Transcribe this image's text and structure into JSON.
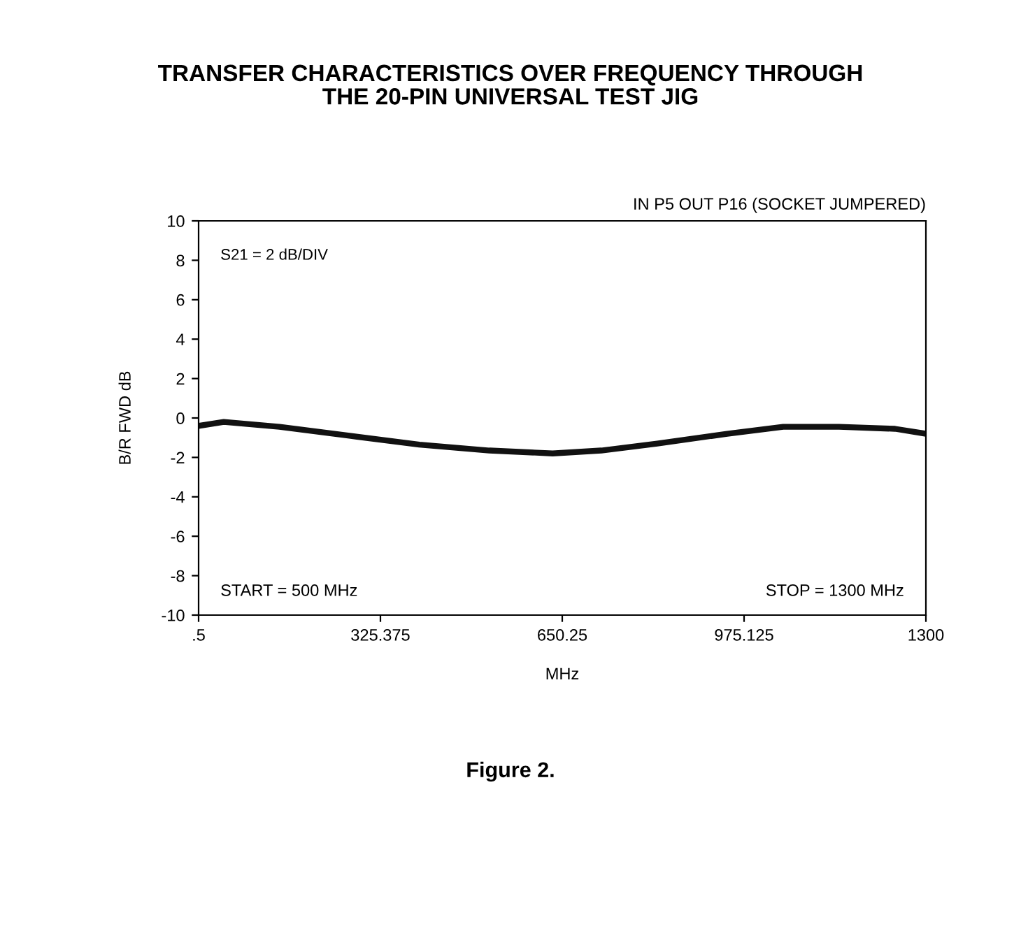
{
  "chart_data": {
    "type": "line",
    "title": "TRANSFER CHARACTERISTICS OVER FREQUENCY THROUGH\nTHE 20-PIN UNIVERSAL TEST JIG",
    "xlabel": "MHz",
    "ylabel": "B/R FWD dB",
    "x": [
      0.5,
      45.5,
      145,
      270,
      395,
      520,
      633,
      720,
      820,
      945,
      1045,
      1145,
      1245,
      1300
    ],
    "series": [
      {
        "color": "#111111",
        "values": [
          -0.4,
          -0.2,
          -0.45,
          -0.9,
          -1.35,
          -1.65,
          -1.8,
          -1.65,
          -1.3,
          -0.8,
          -0.45,
          -0.45,
          -0.55,
          -0.8
        ]
      }
    ],
    "xlim": [
      0.5,
      1300
    ],
    "xticks": [
      {
        "value": 0.5,
        "label": ".5"
      },
      325.375,
      650.25,
      975.125,
      1300
    ],
    "ylim": [
      -10,
      10
    ],
    "yticks": [
      -10,
      -8,
      -6,
      -4,
      -2,
      0,
      2,
      4,
      6,
      8,
      10
    ],
    "grid": false,
    "legend": false,
    "marker": "none",
    "line_style": "solid",
    "annotations": [
      "IN P5 OUT P16 (SOCKET JUMPERED)",
      "S21 = 2 dB/DIV",
      "START = 500 MHz",
      "STOP = 1300 MHz",
      "Figure 2."
    ]
  }
}
